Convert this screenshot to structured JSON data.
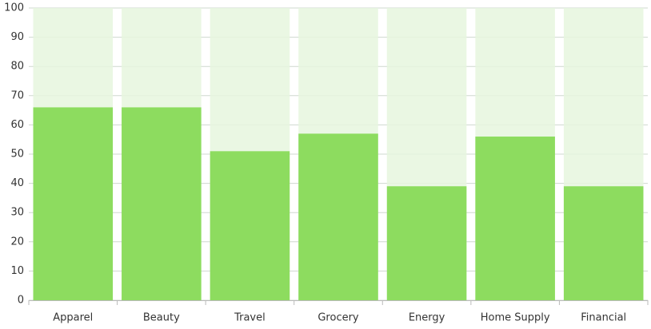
{
  "chart_data": {
    "type": "bar",
    "categories": [
      "Apparel",
      "Beauty",
      "Travel",
      "Grocery",
      "Energy",
      "Home Supply",
      "Financial"
    ],
    "values": [
      66,
      66,
      51,
      57,
      39,
      56,
      39
    ],
    "color": "#8ddc5f",
    "track_color": "#e6f6de",
    "ylim": [
      0,
      100
    ],
    "yticks": [
      0,
      10,
      20,
      30,
      40,
      50,
      60,
      70,
      80,
      90,
      100
    ],
    "grid": true
  }
}
